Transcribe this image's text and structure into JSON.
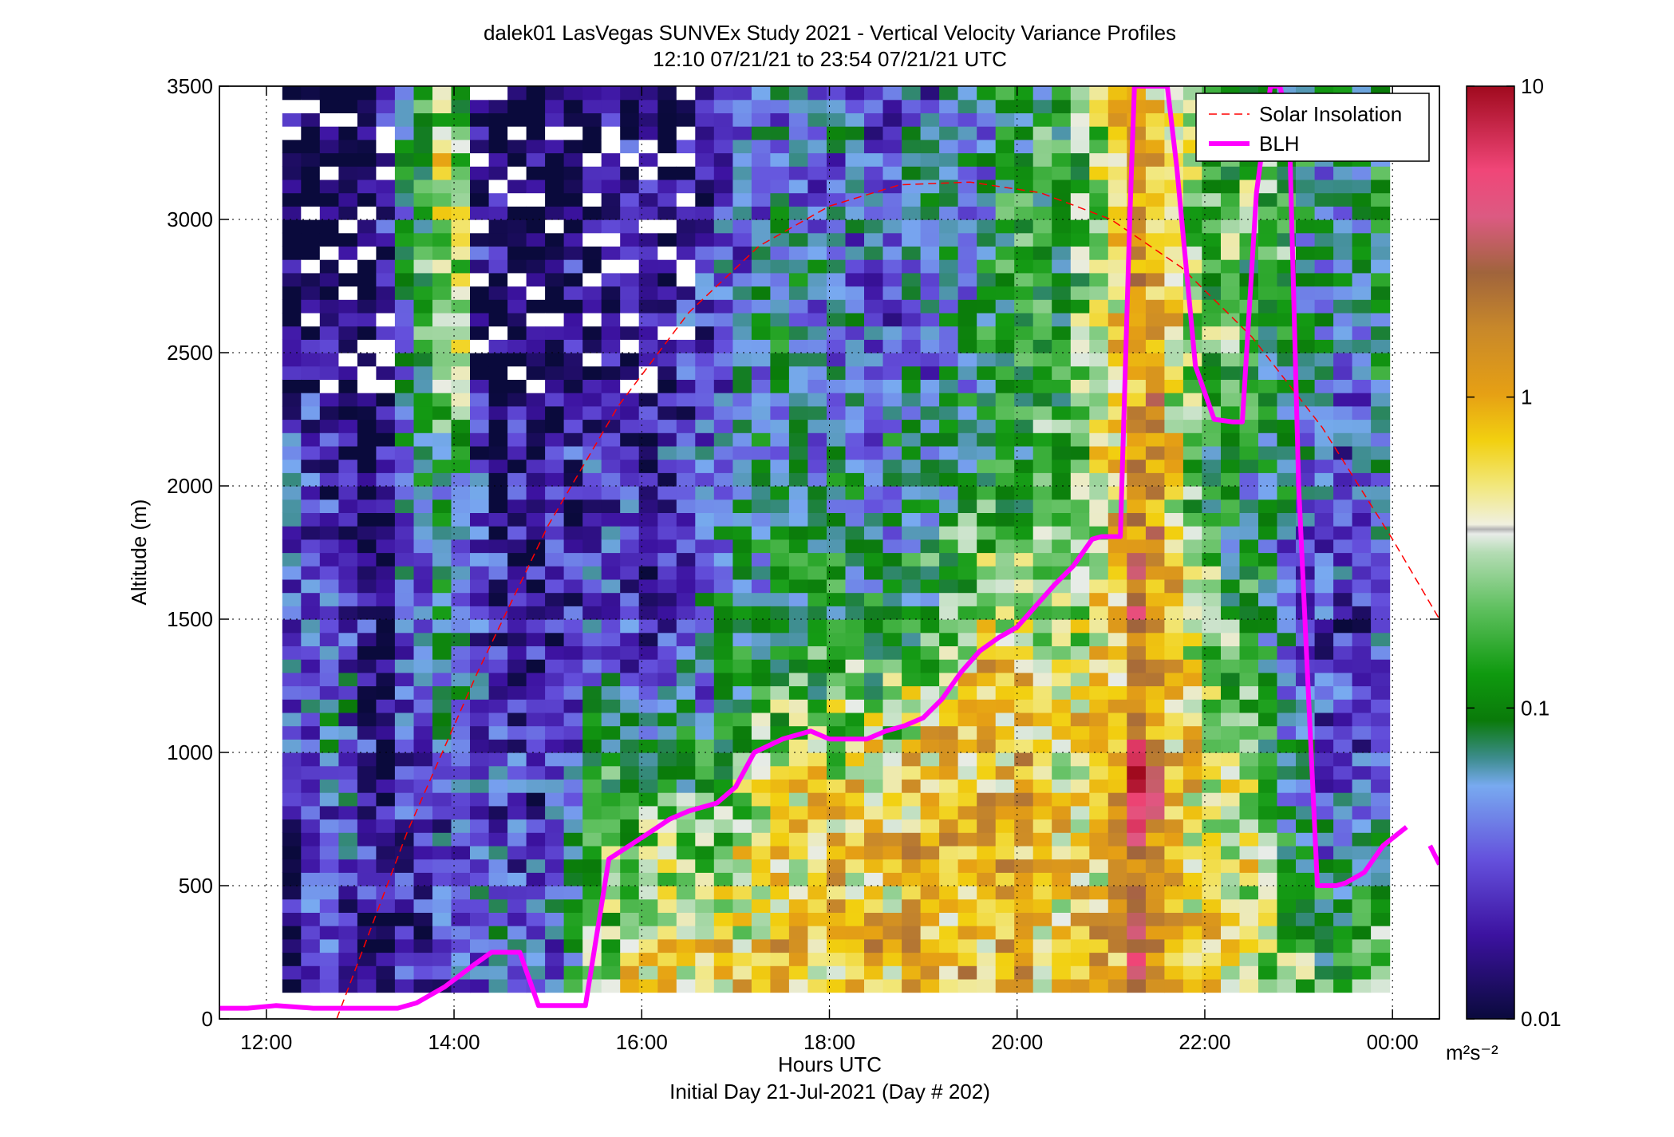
{
  "chart_data": {
    "type": "heatmap",
    "title": "dalek01 LasVegas SUNVEx Study 2021 - Vertical Velocity Variance Profiles",
    "subtitle": "12:10 07/21/21 to 23:54 07/21/21  UTC",
    "xlabel": "Hours UTC",
    "xlabel2": "Initial Day 21-Jul-2021 (Day # 202)",
    "ylabel": "Altitude (m)",
    "xlim": [
      11.5,
      24.5
    ],
    "ylim": [
      0,
      3500
    ],
    "x_ticks": [
      12,
      14,
      16,
      18,
      20,
      22,
      24
    ],
    "x_tick_labels": [
      "12:00",
      "14:00",
      "16:00",
      "18:00",
      "20:00",
      "22:00",
      "00:00"
    ],
    "y_ticks": [
      0,
      500,
      1000,
      1500,
      2000,
      2500,
      3000,
      3500
    ],
    "y_tick_labels": [
      "0",
      "500",
      "1000",
      "1500",
      "2000",
      "2500",
      "3000",
      "3500"
    ],
    "grid": true,
    "colorbar": {
      "scale": "log",
      "range": [
        0.01,
        10
      ],
      "ticks": [
        0.01,
        0.1,
        1,
        10
      ],
      "tick_labels": [
        "0.01",
        "0.1",
        "1",
        "10"
      ],
      "unit_label": "m²s⁻²"
    },
    "heatmap_extent": {
      "x_start": 12.17,
      "x_end": 23.9,
      "y_start": 100,
      "y_end": 3500
    },
    "heatmap_log10_profiles": [
      {
        "x": 12.17,
        "v": [
          [
            0,
            -2
          ],
          [
            1200,
            -1.6
          ],
          [
            2000,
            -1.3
          ],
          [
            2600,
            -2
          ]
        ]
      },
      {
        "x": 12.5,
        "v": [
          [
            0,
            -1.6
          ],
          [
            1500,
            -1.4
          ],
          [
            2200,
            -1.7
          ],
          [
            3000,
            -2
          ]
        ]
      },
      {
        "x": 12.8,
        "v": [
          [
            0,
            -1.9
          ],
          [
            800,
            -1.2
          ],
          [
            1500,
            -1.4
          ],
          [
            2200,
            -1.8
          ],
          [
            3500,
            -2
          ]
        ]
      },
      {
        "x": 13.2,
        "v": [
          [
            0,
            -2
          ],
          [
            3500,
            -2
          ]
        ]
      },
      {
        "x": 13.5,
        "v": [
          [
            0,
            -1.8
          ],
          [
            1500,
            -1.4
          ],
          [
            2500,
            -1.1
          ],
          [
            3500,
            -0.9
          ]
        ]
      },
      {
        "x": 13.8,
        "v": [
          [
            0,
            -1.8
          ],
          [
            1500,
            -1.2
          ],
          [
            2500,
            -0.9
          ],
          [
            3500,
            -0.6
          ]
        ]
      },
      {
        "x": 14.0,
        "v": [
          [
            0,
            -1.6
          ],
          [
            1000,
            -1.3
          ],
          [
            2000,
            -1.0
          ],
          [
            2500,
            0.0
          ],
          [
            3500,
            -0.2
          ]
        ]
      },
      {
        "x": 14.3,
        "v": [
          [
            0,
            -1.3
          ],
          [
            1500,
            -1.7
          ],
          [
            2500,
            -1.9
          ],
          [
            3500,
            -2
          ]
        ]
      },
      {
        "x": 14.7,
        "v": [
          [
            0,
            -1.2
          ],
          [
            1500,
            -1.8
          ],
          [
            3500,
            -2
          ]
        ]
      },
      {
        "x": 15.1,
        "v": [
          [
            0,
            -1.4
          ],
          [
            1000,
            -1.6
          ],
          [
            2000,
            -1.8
          ],
          [
            3500,
            -2
          ]
        ]
      },
      {
        "x": 15.5,
        "v": [
          [
            0,
            -0.4
          ],
          [
            500,
            -0.6
          ],
          [
            1500,
            -1.5
          ],
          [
            2500,
            -1.7
          ],
          [
            3500,
            -1.8
          ]
        ]
      },
      {
        "x": 16.0,
        "v": [
          [
            0,
            -0.2
          ],
          [
            600,
            -0.6
          ],
          [
            1500,
            -1.6
          ],
          [
            2500,
            -1.8
          ],
          [
            3500,
            -1.9
          ]
        ]
      },
      {
        "x": 16.5,
        "v": [
          [
            0,
            -0.1
          ],
          [
            600,
            -0.5
          ],
          [
            1200,
            -1.4
          ],
          [
            2500,
            -1.7
          ],
          [
            3500,
            -1.8
          ]
        ]
      },
      {
        "x": 17.0,
        "v": [
          [
            0,
            -0.1
          ],
          [
            700,
            -0.4
          ],
          [
            1200,
            -1.1
          ],
          [
            2500,
            -1.3
          ],
          [
            3500,
            -1.4
          ]
        ]
      },
      {
        "x": 17.5,
        "v": [
          [
            0,
            0.0
          ],
          [
            800,
            -0.3
          ],
          [
            1500,
            -1.0
          ],
          [
            2500,
            -1.2
          ],
          [
            3500,
            -1.3
          ]
        ]
      },
      {
        "x": 18.0,
        "v": [
          [
            0,
            0.0
          ],
          [
            900,
            -0.3
          ],
          [
            1500,
            -1.0
          ],
          [
            2500,
            -1.3
          ],
          [
            3500,
            -1.4
          ]
        ]
      },
      {
        "x": 18.5,
        "v": [
          [
            0,
            0.0
          ],
          [
            900,
            -0.3
          ],
          [
            1500,
            -1.0
          ],
          [
            2500,
            -1.4
          ],
          [
            3500,
            -1.5
          ]
        ]
      },
      {
        "x": 19.0,
        "v": [
          [
            0,
            0.0
          ],
          [
            1000,
            -0.2
          ],
          [
            1500,
            -0.9
          ],
          [
            2500,
            -1.3
          ],
          [
            3500,
            -1.4
          ]
        ]
      },
      {
        "x": 19.5,
        "v": [
          [
            0,
            0.0
          ],
          [
            1200,
            -0.1
          ],
          [
            1700,
            -0.8
          ],
          [
            2500,
            -1.2
          ],
          [
            3500,
            -1.3
          ]
        ]
      },
      {
        "x": 20.0,
        "v": [
          [
            0,
            0.0
          ],
          [
            1400,
            -0.1
          ],
          [
            2000,
            -0.9
          ],
          [
            2500,
            -0.8
          ],
          [
            3500,
            -1.0
          ]
        ]
      },
      {
        "x": 20.5,
        "v": [
          [
            0,
            -0.1
          ],
          [
            1500,
            -0.5
          ],
          [
            2500,
            -0.9
          ],
          [
            3500,
            -0.9
          ]
        ]
      },
      {
        "x": 21.0,
        "v": [
          [
            0,
            0.0
          ],
          [
            1800,
            -0.3
          ],
          [
            2500,
            -0.5
          ],
          [
            3000,
            -0.3
          ],
          [
            3500,
            -0.2
          ]
        ]
      },
      {
        "x": 21.3,
        "v": [
          [
            0,
            0.3
          ],
          [
            600,
            0.5
          ],
          [
            900,
            0.7
          ],
          [
            1200,
            0.4
          ],
          [
            2000,
            0.3
          ],
          [
            3500,
            0.1
          ]
        ]
      },
      {
        "x": 21.6,
        "v": [
          [
            0,
            0.0
          ],
          [
            1500,
            0.0
          ],
          [
            2000,
            -0.2
          ],
          [
            3000,
            -0.2
          ],
          [
            3500,
            -0.3
          ]
        ]
      },
      {
        "x": 22.0,
        "v": [
          [
            0,
            -0.1
          ],
          [
            1000,
            -0.4
          ],
          [
            2000,
            -0.9
          ],
          [
            3000,
            -0.7
          ],
          [
            3500,
            -0.8
          ]
        ]
      },
      {
        "x": 22.5,
        "v": [
          [
            0,
            -0.2
          ],
          [
            800,
            -0.6
          ],
          [
            1800,
            -1.1
          ],
          [
            3000,
            -0.6
          ],
          [
            3500,
            -0.8
          ]
        ]
      },
      {
        "x": 23.0,
        "v": [
          [
            0,
            -0.5
          ],
          [
            700,
            -1.2
          ],
          [
            1500,
            -1.5
          ],
          [
            2500,
            -1.1
          ],
          [
            3500,
            -1.0
          ]
        ]
      },
      {
        "x": 23.4,
        "v": [
          [
            0,
            -0.8
          ],
          [
            500,
            -1.1
          ],
          [
            1000,
            -1.8
          ],
          [
            2000,
            -1.5
          ],
          [
            3000,
            -1.2
          ],
          [
            3500,
            -1.1
          ]
        ]
      },
      {
        "x": 23.9,
        "v": [
          [
            0,
            -0.3
          ],
          [
            500,
            -0.9
          ],
          [
            1000,
            -1.6
          ],
          [
            2000,
            -1.3
          ],
          [
            3000,
            -1.0
          ],
          [
            3500,
            -1.1
          ]
        ]
      }
    ],
    "series": [
      {
        "name": "Solar Insolation",
        "style": "dashed",
        "color": "#ff0000",
        "x": [
          12.75,
          13.5,
          14.25,
          15.0,
          15.75,
          16.5,
          17.25,
          18.0,
          18.75,
          19.5,
          20.25,
          21.0,
          21.75,
          22.5,
          23.25,
          24.0,
          24.5
        ],
        "y": [
          0,
          700,
          1300,
          1850,
          2300,
          2650,
          2900,
          3050,
          3130,
          3140,
          3100,
          3000,
          2820,
          2560,
          2220,
          1800,
          1500
        ]
      },
      {
        "name": "BLH",
        "style": "solid",
        "color": "#ff00ff",
        "segments": [
          {
            "x": [
              11.5,
              11.8,
              12.1,
              12.5,
              13.0,
              13.4,
              13.6,
              13.9,
              14.2,
              14.4,
              14.7,
              14.9,
              15.2,
              15.4,
              15.65,
              16.0,
              16.3,
              16.5,
              16.8,
              17.0,
              17.2,
              17.5,
              17.8,
              18.0,
              18.2,
              18.4,
              18.6,
              18.8,
              19.0,
              19.2,
              19.4,
              19.6,
              19.8,
              20.0,
              20.2,
              20.4,
              20.6,
              20.8,
              20.9,
              21.1,
              21.2,
              21.25,
              21.3,
              21.45,
              21.6,
              21.7,
              21.9,
              22.1,
              22.3,
              22.4,
              22.55,
              22.7,
              22.8,
              22.9,
              23.0,
              23.2,
              23.4,
              23.5,
              23.7,
              23.9,
              24.15
            ],
            "y": [
              40,
              40,
              50,
              40,
              40,
              40,
              60,
              120,
              200,
              250,
              250,
              50,
              50,
              50,
              600,
              680,
              750,
              780,
              810,
              870,
              1000,
              1050,
              1080,
              1050,
              1050,
              1050,
              1080,
              1100,
              1130,
              1200,
              1300,
              1380,
              1430,
              1470,
              1550,
              1630,
              1700,
              1800,
              1810,
              1810,
              3000,
              3500,
              3500,
              3500,
              3500,
              3200,
              2450,
              2250,
              2240,
              2240,
              3100,
              3500,
              3500,
              3350,
              2000,
              500,
              500,
              510,
              550,
              650,
              720
            ]
          },
          {
            "x": [
              24.4,
              24.5
            ],
            "y": [
              650,
              580
            ]
          }
        ]
      }
    ],
    "legend": {
      "placement": "top-right",
      "entries": [
        "Solar Insolation",
        "BLH"
      ]
    },
    "colors": {
      "solar": "#ff0000",
      "blh": "#ff00ff",
      "missing": "#ffffff"
    }
  }
}
